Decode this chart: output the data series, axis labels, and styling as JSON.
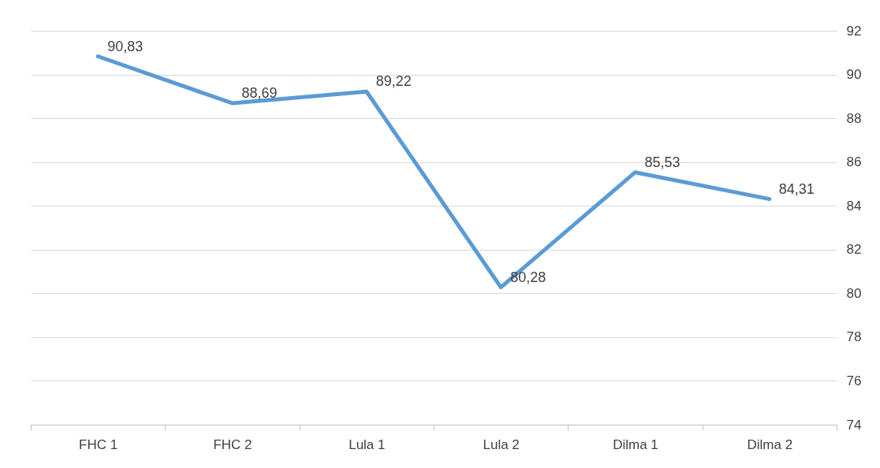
{
  "chart_data": {
    "type": "line",
    "categories": [
      "FHC 1",
      "FHC 2",
      "Lula 1",
      "Lula 2",
      "Dilma 1",
      "Dilma 2"
    ],
    "series": [
      {
        "color": "#5b9bd5",
        "values": [
          90.83,
          88.69,
          89.22,
          80.28,
          85.53,
          84.31
        ],
        "value_labels": [
          "90,83",
          "88,69",
          "89,22",
          "80,28",
          "85,53",
          "84,31"
        ]
      }
    ],
    "ylim": [
      74,
      92
    ],
    "yticks": [
      74,
      76,
      78,
      80,
      82,
      84,
      86,
      88,
      90,
      92
    ],
    "grid": "y",
    "marker": "none",
    "line_style": "solid"
  }
}
